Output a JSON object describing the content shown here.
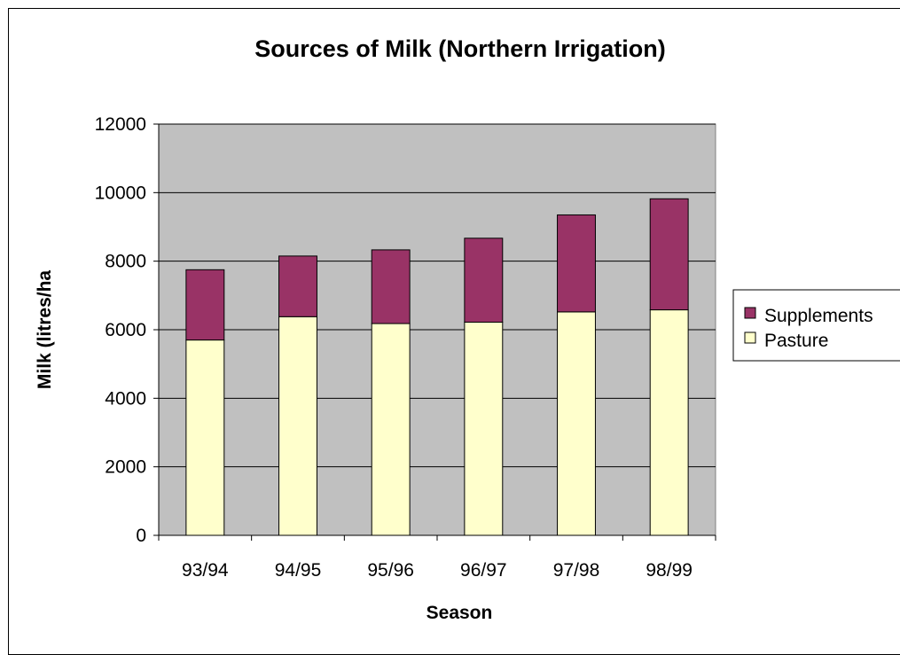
{
  "chart_data": {
    "type": "bar",
    "stacked": true,
    "title": "Sources of Milk (Northern Irrigation)",
    "xlabel": "Season",
    "ylabel": "Milk (litres/ha",
    "categories": [
      "93/94",
      "94/95",
      "95/96",
      "96/97",
      "97/98",
      "98/99"
    ],
    "series": [
      {
        "name": "Pasture",
        "values": [
          5700,
          6380,
          6180,
          6220,
          6520,
          6580
        ],
        "color": "#ffffcc"
      },
      {
        "name": "Supplements",
        "values": [
          2050,
          1770,
          2150,
          2450,
          2830,
          3240
        ],
        "color": "#993366"
      }
    ],
    "ylim": [
      0,
      12000
    ],
    "yticks": [
      "0",
      "2000",
      "4000",
      "6000",
      "8000",
      "10000",
      "12000"
    ],
    "grid": true,
    "plot_background": "#c0c0c0",
    "legend": {
      "placement": "right",
      "entries": [
        "Supplements",
        "Pasture"
      ]
    }
  }
}
